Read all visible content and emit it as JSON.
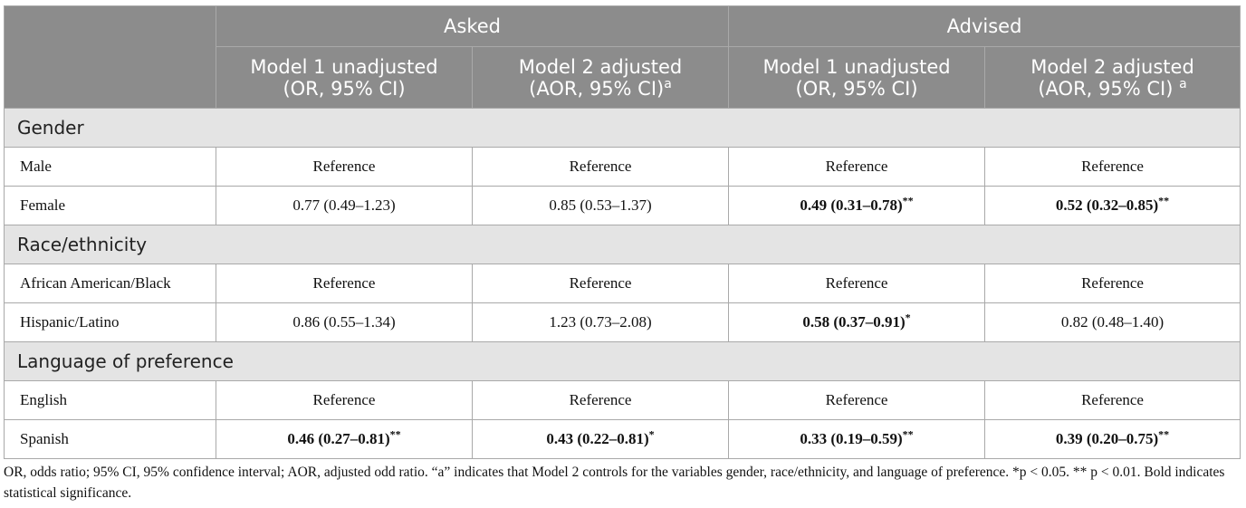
{
  "header": {
    "group_asked": "Asked",
    "group_advised": "Advised",
    "cols": [
      {
        "line1": "Model 1 unadjusted",
        "line2": "(OR, 95% CI)",
        "sup": ""
      },
      {
        "line1": "Model 2 adjusted",
        "line2": "(AOR, 95% CI)",
        "sup": "a"
      },
      {
        "line1": "Model 1 unadjusted",
        "line2": "(OR, 95% CI)",
        "sup": ""
      },
      {
        "line1": "Model 2 adjusted",
        "line2": "(AOR, 95% CI) ",
        "sup": "a"
      }
    ]
  },
  "sections": [
    {
      "title": "Gender",
      "rows": [
        {
          "label": "Male",
          "cells": [
            {
              "v": "Reference",
              "sig": "",
              "bold": false
            },
            {
              "v": "Reference",
              "sig": "",
              "bold": false
            },
            {
              "v": "Reference",
              "sig": "",
              "bold": false
            },
            {
              "v": "Reference",
              "sig": "",
              "bold": false
            }
          ]
        },
        {
          "label": "Female",
          "cells": [
            {
              "v": "0.77 (0.49–1.23)",
              "sig": "",
              "bold": false
            },
            {
              "v": "0.85 (0.53–1.37)",
              "sig": "",
              "bold": false
            },
            {
              "v": "0.49 (0.31–0.78)",
              "sig": "**",
              "bold": true
            },
            {
              "v": "0.52 (0.32–0.85)",
              "sig": "**",
              "bold": true
            }
          ]
        }
      ]
    },
    {
      "title": "Race/ethnicity",
      "rows": [
        {
          "label": "African American/Black",
          "cells": [
            {
              "v": "Reference",
              "sig": "",
              "bold": false
            },
            {
              "v": "Reference",
              "sig": "",
              "bold": false
            },
            {
              "v": "Reference",
              "sig": "",
              "bold": false
            },
            {
              "v": "Reference",
              "sig": "",
              "bold": false
            }
          ]
        },
        {
          "label": "Hispanic/Latino",
          "cells": [
            {
              "v": "0.86 (0.55–1.34)",
              "sig": "",
              "bold": false
            },
            {
              "v": "1.23 (0.73–2.08)",
              "sig": "",
              "bold": false
            },
            {
              "v": "0.58 (0.37–0.91)",
              "sig": "*",
              "bold": true
            },
            {
              "v": "0.82 (0.48–1.40)",
              "sig": "",
              "bold": false
            }
          ]
        }
      ]
    },
    {
      "title": "Language of preference",
      "rows": [
        {
          "label": "English",
          "cells": [
            {
              "v": "Reference",
              "sig": "",
              "bold": false
            },
            {
              "v": "Reference",
              "sig": "",
              "bold": false
            },
            {
              "v": "Reference",
              "sig": "",
              "bold": false
            },
            {
              "v": "Reference",
              "sig": "",
              "bold": false
            }
          ]
        },
        {
          "label": "Spanish",
          "cells": [
            {
              "v": "0.46 (0.27–0.81)",
              "sig": "**",
              "bold": true
            },
            {
              "v": "0.43 (0.22–0.81)",
              "sig": "*",
              "bold": true
            },
            {
              "v": "0.33 (0.19–0.59)",
              "sig": "**",
              "bold": true
            },
            {
              "v": "0.39 (0.20–0.75)",
              "sig": "**",
              "bold": true
            }
          ]
        }
      ]
    }
  ],
  "footnote": "OR, odds ratio; 95% CI, 95% confidence interval; AOR, adjusted odd ratio. “a” indicates that Model 2 controls for the variables gender, race/ethnicity, and language of preference. *p < 0.05. ** p < 0.01. Bold indicates statistical significance."
}
